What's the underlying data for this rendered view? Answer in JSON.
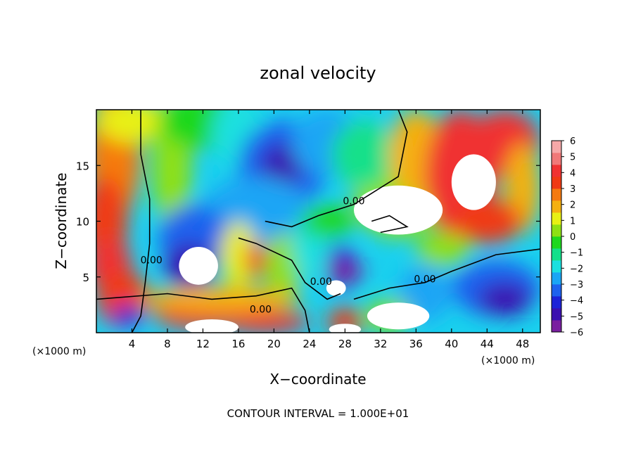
{
  "chart_data": {
    "type": "heatmap",
    "title": "zonal velocity",
    "xlabel": "X−coordinate",
    "ylabel": "Z−coordinate",
    "x_unit": "(×1000 m)",
    "y_unit": "(×1000 m)",
    "xlim": [
      0,
      50
    ],
    "ylim": [
      0,
      20
    ],
    "x_ticks": [
      4,
      8,
      12,
      16,
      20,
      24,
      28,
      32,
      36,
      40,
      44,
      48
    ],
    "y_ticks": [
      5,
      10,
      15
    ],
    "colorbar": {
      "range": [
        -6,
        6
      ],
      "ticks": [
        "6",
        "5",
        "4",
        "3",
        "2",
        "1",
        "0",
        "−1",
        "−2",
        "−3",
        "−4",
        "−5",
        "−6"
      ],
      "colors": [
        "#7a1fa0",
        "#3a0fb0",
        "#1c22d8",
        "#1d62ee",
        "#1aa5f5",
        "#1ae0e0",
        "#14e08a",
        "#1ed81e",
        "#8ee014",
        "#e8f014",
        "#f5b010",
        "#f57a10",
        "#f03a14",
        "#f03232",
        "#f07878",
        "#f5a8a8"
      ]
    },
    "contour_labels": [
      {
        "text": "0.00",
        "x": 29,
        "y": 11.5
      },
      {
        "text": "0.00",
        "x": 37,
        "y": 4.5
      },
      {
        "text": "0.00",
        "x": 18.5,
        "y": 1.8
      },
      {
        "text": "0.00",
        "x": 6.2,
        "y": 6.2
      },
      {
        "text": "0.00",
        "x": 25.3,
        "y": 4.3
      }
    ],
    "contour_interval": "CONTOUR INTERVAL = 1.000E+01",
    "grid": false
  }
}
